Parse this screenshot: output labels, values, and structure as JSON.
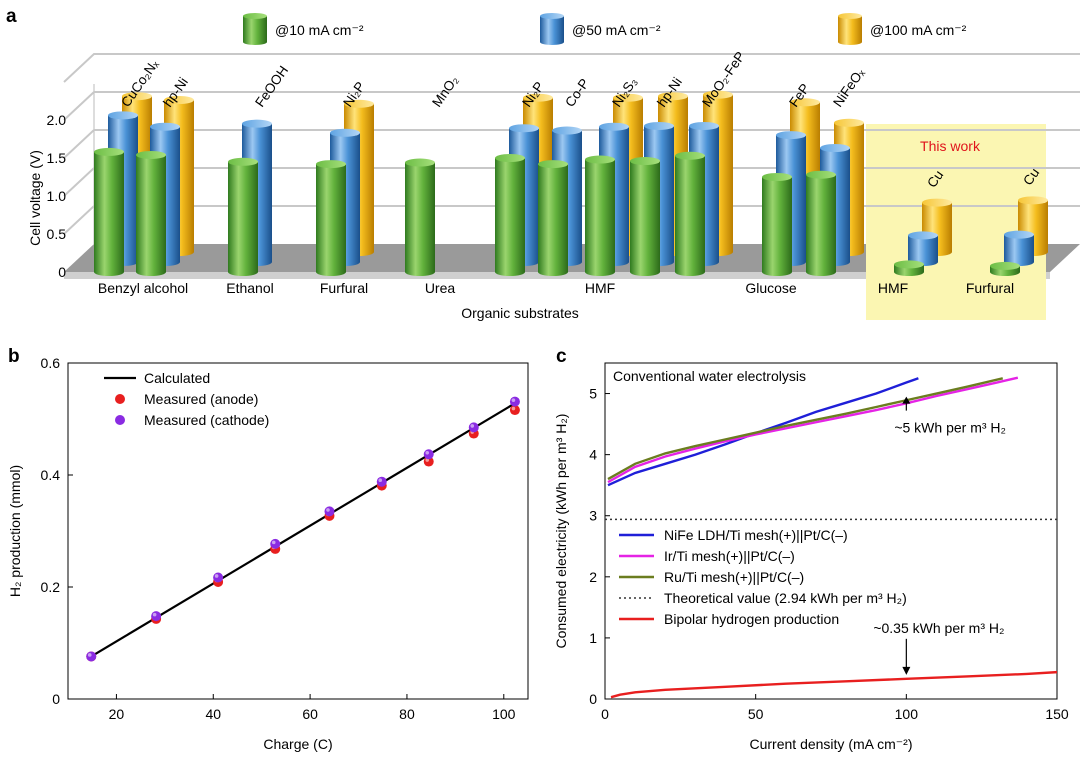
{
  "figure": {
    "panel_a_letter": "a",
    "panel_b_letter": "b",
    "panel_c_letter": "c"
  },
  "chart_data": [
    {
      "panel": "a",
      "type": "bar",
      "ylabel": "Cell voltage (V)",
      "xlabel": "Organic substrates",
      "ylim": [
        0,
        2.0
      ],
      "yticks": [
        "0",
        "0.5",
        "1.0",
        "1.5",
        "2.0"
      ],
      "legend": [
        {
          "label": "@10 mA cm⁻²",
          "color": "#5aa83a"
        },
        {
          "label": "@50 mA cm⁻²",
          "color": "#3f86cc"
        },
        {
          "label": "@100 mA cm⁻²",
          "color": "#f1b51a"
        }
      ],
      "highlight_label": "This work",
      "groups": [
        {
          "category": "Benzyl alcohol",
          "catalysts": [
            {
              "name": "CuCo₂Nₓ",
              "values": [
                1.58,
                1.93,
                2.05
              ]
            },
            {
              "name": "hp-Ni",
              "values": [
                1.54,
                1.78,
                2.0
              ]
            }
          ]
        },
        {
          "category": "Ethanol",
          "catalysts": [
            {
              "name": "FeOOH",
              "values": [
                1.45,
                1.82,
                null
              ]
            }
          ]
        },
        {
          "category": "Furfural",
          "catalysts": [
            {
              "name": "Ni₂P",
              "values": [
                1.42,
                1.7,
                1.95
              ]
            }
          ]
        },
        {
          "category": "Urea",
          "catalysts": [
            {
              "name": "MnO₂",
              "values": [
                1.44,
                null,
                null
              ]
            }
          ]
        },
        {
          "category": "HMF",
          "catalysts": [
            {
              "name": "Ni₂P",
              "values": [
                1.5,
                1.76,
                2.03
              ]
            },
            {
              "name": "Co-P",
              "values": [
                1.42,
                1.73,
                null
              ]
            },
            {
              "name": "Ni₂S₃",
              "values": [
                1.48,
                1.78,
                2.03
              ]
            },
            {
              "name": "hp-Ni",
              "values": [
                1.46,
                1.79,
                2.05
              ]
            },
            {
              "name": "MoO₂-FeP",
              "values": [
                1.53,
                1.79,
                2.07
              ]
            }
          ]
        },
        {
          "category": "Glucose",
          "catalysts": [
            {
              "name": "FeP",
              "values": [
                1.25,
                1.67,
                1.97
              ]
            },
            {
              "name": "NiFeOₓ",
              "values": [
                1.28,
                1.5,
                1.7
              ]
            }
          ]
        },
        {
          "category": "HMF",
          "this_work": true,
          "catalysts": [
            {
              "name": "Cu",
              "values": [
                0.1,
                0.35,
                0.65
              ]
            }
          ]
        },
        {
          "category": "Furfural",
          "this_work": true,
          "catalysts": [
            {
              "name": "Cu",
              "values": [
                0.08,
                0.36,
                0.68
              ]
            }
          ]
        }
      ]
    },
    {
      "panel": "b",
      "type": "line",
      "xlabel": "Charge (C)",
      "ylabel": "H₂ production (mmol)",
      "xlim": [
        10,
        105
      ],
      "ylim": [
        0,
        0.6
      ],
      "xticks": [
        20,
        40,
        60,
        80,
        100
      ],
      "yticks": [
        0,
        0.2,
        0.4,
        0.6
      ],
      "ytick_labels": [
        "0",
        "0.2",
        "0.4",
        "0.6"
      ],
      "series": [
        {
          "name": "Calculated",
          "kind": "line",
          "color": "#000000",
          "x": [
            14.8,
            102.3
          ],
          "y": [
            0.076,
            0.528
          ]
        },
        {
          "name": "Measured (anode)",
          "kind": "scatter",
          "color": "#e81f1f",
          "x": [
            14.8,
            28.2,
            41.0,
            52.8,
            64.0,
            74.8,
            84.5,
            93.8,
            102.3
          ],
          "y": [
            0.076,
            0.143,
            0.209,
            0.268,
            0.327,
            0.381,
            0.424,
            0.474,
            0.516
          ]
        },
        {
          "name": "Measured (cathode)",
          "kind": "scatter",
          "color": "#8a2be2",
          "x": [
            14.8,
            28.2,
            41.0,
            52.8,
            64.0,
            74.8,
            84.5,
            93.8,
            102.3
          ],
          "y": [
            0.076,
            0.148,
            0.217,
            0.277,
            0.335,
            0.388,
            0.437,
            0.485,
            0.531
          ]
        }
      ]
    },
    {
      "panel": "c",
      "type": "line",
      "xlabel": "Current density (mA cm⁻²)",
      "ylabel": "Consumed electricity (kWh per m³ H₂)",
      "xlim": [
        0,
        150
      ],
      "ylim": [
        0,
        5.5
      ],
      "xticks": [
        0,
        50,
        100,
        150
      ],
      "yticks": [
        0,
        1,
        2,
        3,
        4,
        5
      ],
      "inset_title": "Conventional water electrolysis",
      "annotations": [
        {
          "text": "~5 kWh per m³ H₂",
          "x": 100,
          "y": 4.95
        },
        {
          "text": "~0.35 kWh per m³ H₂",
          "x": 100,
          "y": 0.33
        }
      ],
      "series": [
        {
          "name": "NiFe LDH/Ti mesh(+)||Pt/C(–)",
          "color": "#1f1fd8",
          "dash": "solid",
          "x": [
            1,
            10,
            20,
            30,
            40,
            50,
            60,
            70,
            80,
            90,
            100,
            104
          ],
          "y": [
            3.5,
            3.7,
            3.85,
            4.0,
            4.17,
            4.35,
            4.52,
            4.7,
            4.85,
            5.0,
            5.18,
            5.25
          ]
        },
        {
          "name": "Ir/Ti mesh(+)||Pt/C(–)",
          "color": "#e523e5",
          "dash": "solid",
          "x": [
            1,
            10,
            20,
            30,
            40,
            50,
            60,
            70,
            80,
            90,
            100,
            110,
            120,
            130,
            137
          ],
          "y": [
            3.55,
            3.8,
            3.97,
            4.1,
            4.22,
            4.33,
            4.43,
            4.53,
            4.63,
            4.73,
            4.84,
            4.96,
            5.07,
            5.18,
            5.26
          ]
        },
        {
          "name": "Ru/Ti mesh(+)||Pt/C(–)",
          "color": "#6b7d1f",
          "dash": "solid",
          "x": [
            1,
            10,
            20,
            30,
            40,
            50,
            60,
            70,
            80,
            90,
            100,
            110,
            120,
            132
          ],
          "y": [
            3.6,
            3.85,
            4.02,
            4.14,
            4.25,
            4.36,
            4.47,
            4.57,
            4.67,
            4.78,
            4.89,
            5.0,
            5.11,
            5.25
          ]
        },
        {
          "name": "Theoretical value (2.94 kWh per m³ H₂)",
          "color": "#333333",
          "dash": "dotted",
          "x": [
            0,
            150
          ],
          "y": [
            2.94,
            2.94
          ]
        },
        {
          "name": "Bipolar hydrogen production",
          "color": "#e81f1f",
          "dash": "solid",
          "x": [
            2,
            5,
            10,
            20,
            40,
            60,
            80,
            100,
            120,
            140,
            150
          ],
          "y": [
            0.03,
            0.07,
            0.11,
            0.15,
            0.2,
            0.25,
            0.29,
            0.33,
            0.37,
            0.41,
            0.44
          ]
        }
      ]
    }
  ]
}
